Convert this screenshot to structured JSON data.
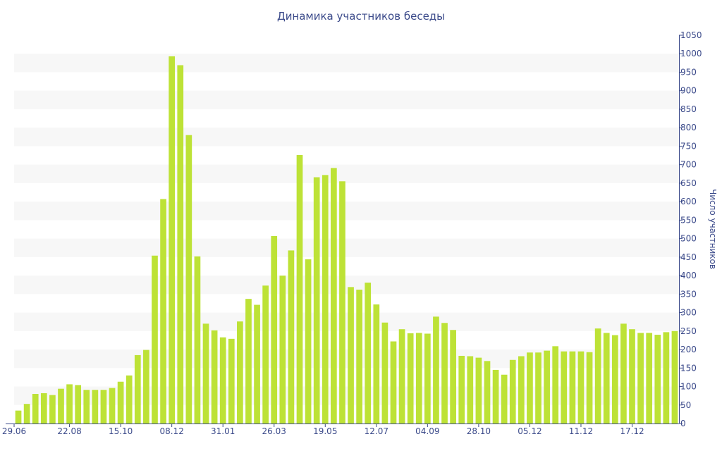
{
  "chart_data": {
    "type": "bar",
    "title": "Динамика участников беседы",
    "xlabel": "",
    "ylabel": "Число участников",
    "ylim": [
      0,
      1050
    ],
    "ytick_step": 50,
    "grid": "alternating horizontal bands",
    "legend": "none",
    "colors": {
      "bar": "#bde236",
      "band": "#f7f7f7",
      "axis": "#3b4a8a",
      "text": "#3b4a8a"
    },
    "x_tick_labels": [
      {
        "index": 0,
        "label": "29.06"
      },
      {
        "index": 6,
        "label": "22.08"
      },
      {
        "index": 12,
        "label": "15.10"
      },
      {
        "index": 18,
        "label": "08.12"
      },
      {
        "index": 24,
        "label": "31.01"
      },
      {
        "index": 30,
        "label": "26.03"
      },
      {
        "index": 36,
        "label": "19.05"
      },
      {
        "index": 42,
        "label": "12.07"
      },
      {
        "index": 48,
        "label": "04.09"
      },
      {
        "index": 54,
        "label": "28.10"
      },
      {
        "index": 60,
        "label": "05.12"
      },
      {
        "index": 66,
        "label": "11.12"
      },
      {
        "index": 72,
        "label": "17.12"
      }
    ],
    "values": [
      35,
      53,
      80,
      82,
      77,
      94,
      106,
      104,
      91,
      91,
      91,
      96,
      113,
      130,
      185,
      199,
      454,
      607,
      993,
      969,
      780,
      452,
      270,
      252,
      233,
      229,
      276,
      337,
      321,
      373,
      507,
      400,
      468,
      726,
      444,
      666,
      672,
      691,
      655,
      369,
      362,
      381,
      322,
      273,
      222,
      255,
      244,
      245,
      243,
      289,
      272,
      253,
      183,
      182,
      178,
      169,
      145,
      132,
      172,
      182,
      192,
      192,
      197,
      209,
      195,
      195,
      195,
      193,
      257,
      245,
      239,
      270,
      255,
      245,
      245,
      240,
      247,
      250
    ]
  }
}
